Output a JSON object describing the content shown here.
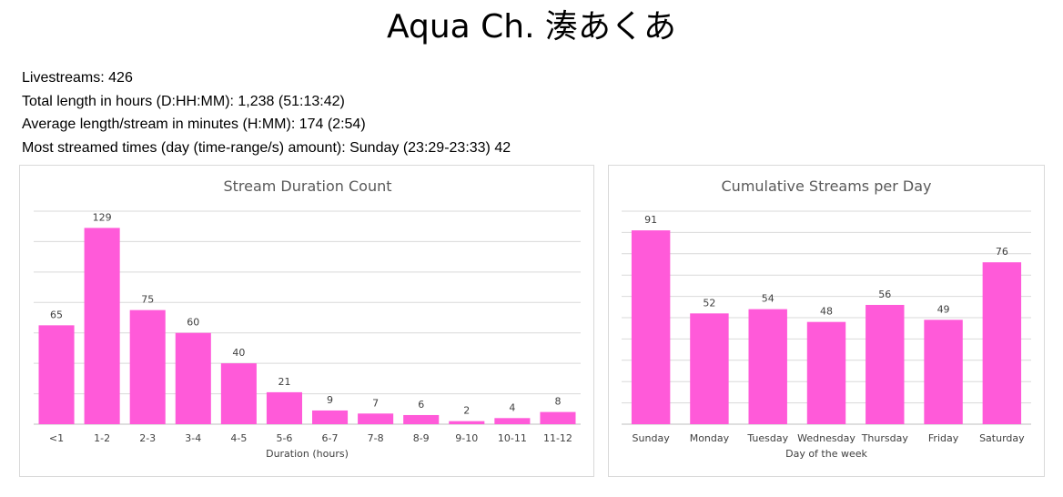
{
  "page": {
    "title": "Aqua Ch. 湊あくあ"
  },
  "stats": {
    "livestreams": "Livestreams: 426",
    "total_length": "Total length in hours (D:HH:MM): 1,238 (51:13:42)",
    "average_length": "Average length/stream in minutes (H:MM): 174 (2:54)",
    "most_streamed": "Most streamed times (day (time-range/s) amount): Sunday (23:29-23:33) 42"
  },
  "chart_data": [
    {
      "type": "bar",
      "title": "Stream Duration Count",
      "xlabel": "Duration (hours)",
      "ylabel": "",
      "categories": [
        "<1",
        "1-2",
        "2-3",
        "3-4",
        "4-5",
        "5-6",
        "6-7",
        "7-8",
        "8-9",
        "9-10",
        "10-11",
        "11-12"
      ],
      "values": [
        65,
        129,
        75,
        60,
        40,
        21,
        9,
        7,
        6,
        2,
        4,
        8
      ],
      "ylim": [
        0,
        140
      ],
      "ytick_step": 20,
      "grid": true,
      "color": "#ff5ad9"
    },
    {
      "type": "bar",
      "title": "Cumulative Streams per Day",
      "xlabel": "Day of the week",
      "ylabel": "",
      "categories": [
        "Sunday",
        "Monday",
        "Tuesday",
        "Wednesday",
        "Thursday",
        "Friday",
        "Saturday"
      ],
      "values": [
        91,
        52,
        54,
        48,
        56,
        49,
        76
      ],
      "ylim": [
        0,
        100
      ],
      "ytick_step": 10,
      "grid": true,
      "color": "#ff5ad9"
    }
  ]
}
